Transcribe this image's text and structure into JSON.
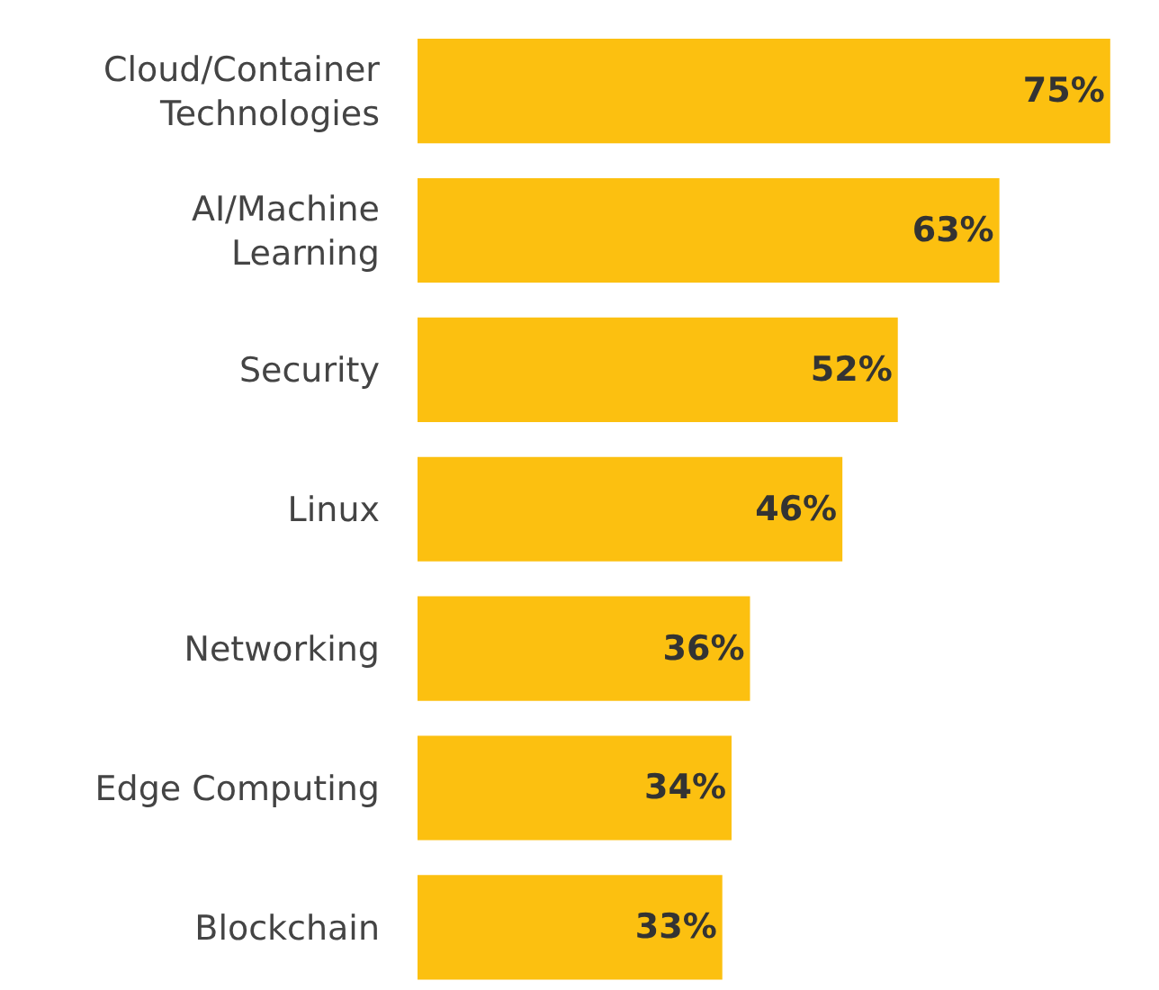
{
  "chart_data": {
    "type": "bar",
    "orientation": "horizontal",
    "categories": [
      "Cloud/Container\nTechnologies",
      "AI/Machine\nLearning",
      "Security",
      "Linux",
      "Networking",
      "Edge Computing",
      "Blockchain"
    ],
    "values": [
      75,
      63,
      52,
      46,
      36,
      34,
      33
    ],
    "value_labels": [
      "75%",
      "63%",
      "52%",
      "46%",
      "36%",
      "34%",
      "33%"
    ],
    "color": "#fcc010"
  }
}
